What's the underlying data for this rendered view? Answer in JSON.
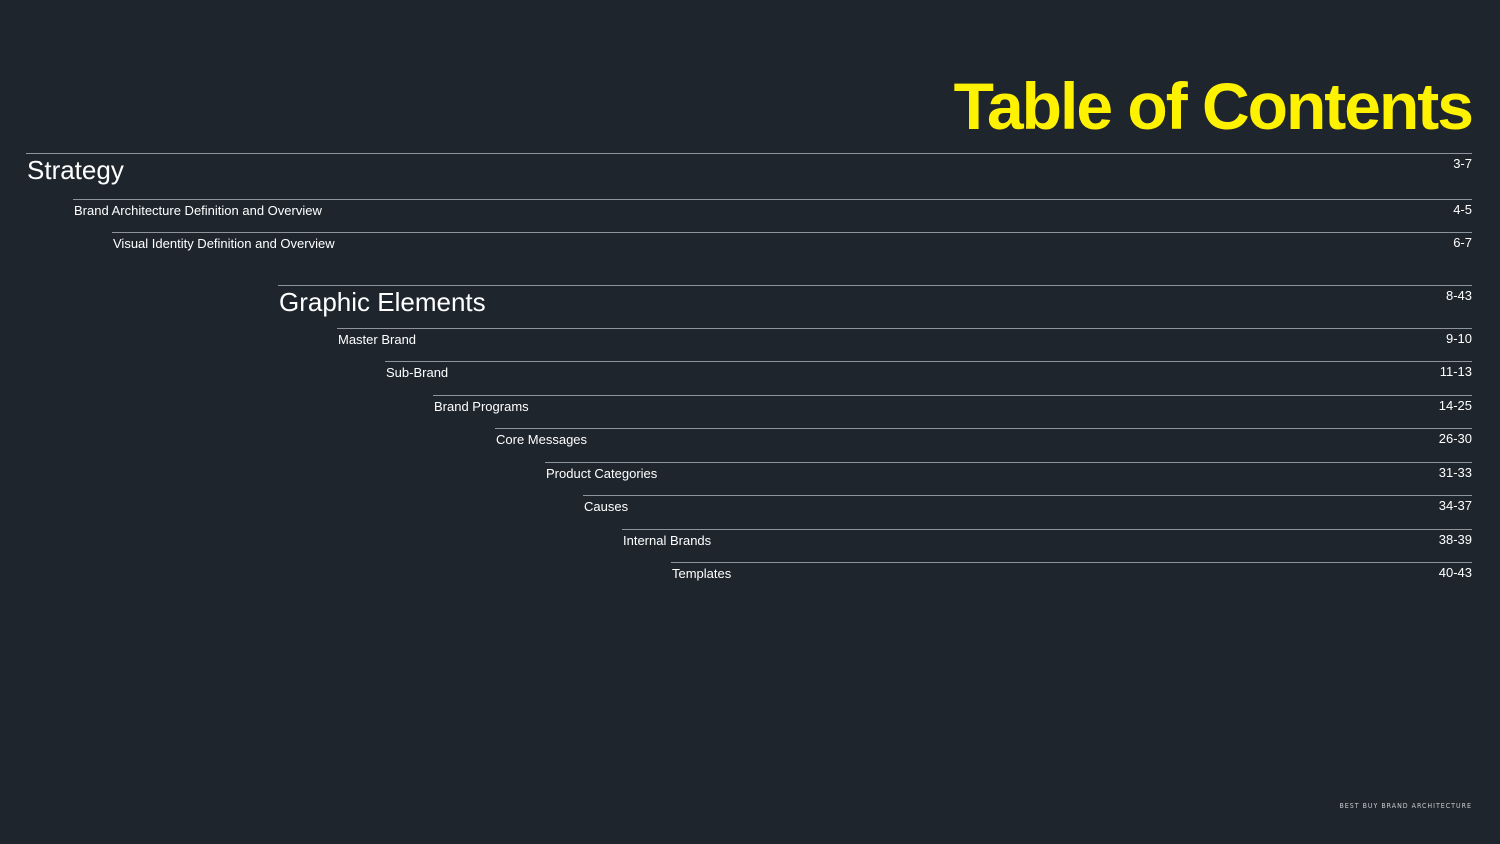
{
  "title": "Table of Contents",
  "sections": [
    {
      "label": "Strategy",
      "pages": "3-7",
      "items": [
        {
          "label": "Brand Architecture Definition and Overview",
          "pages": "4-5"
        },
        {
          "label": "Visual Identity Definition and Overview",
          "pages": "6-7"
        }
      ]
    },
    {
      "label": "Graphic Elements",
      "pages": "8-43",
      "items": [
        {
          "label": "Master Brand",
          "pages": "9-10"
        },
        {
          "label": "Sub-Brand",
          "pages": "11-13"
        },
        {
          "label": "Brand Programs",
          "pages": "14-25"
        },
        {
          "label": "Core Messages",
          "pages": "26-30"
        },
        {
          "label": "Product Categories",
          "pages": "31-33"
        },
        {
          "label": "Causes",
          "pages": "34-37"
        },
        {
          "label": "Internal Brands",
          "pages": "38-39"
        },
        {
          "label": "Templates",
          "pages": "40-43"
        }
      ]
    }
  ],
  "footer": "BEST BUY BRAND ARCHITECTURE",
  "colors": {
    "background": "#1f252d",
    "title": "#fff200",
    "text": "#ffffff",
    "rule": "#8e949b"
  }
}
